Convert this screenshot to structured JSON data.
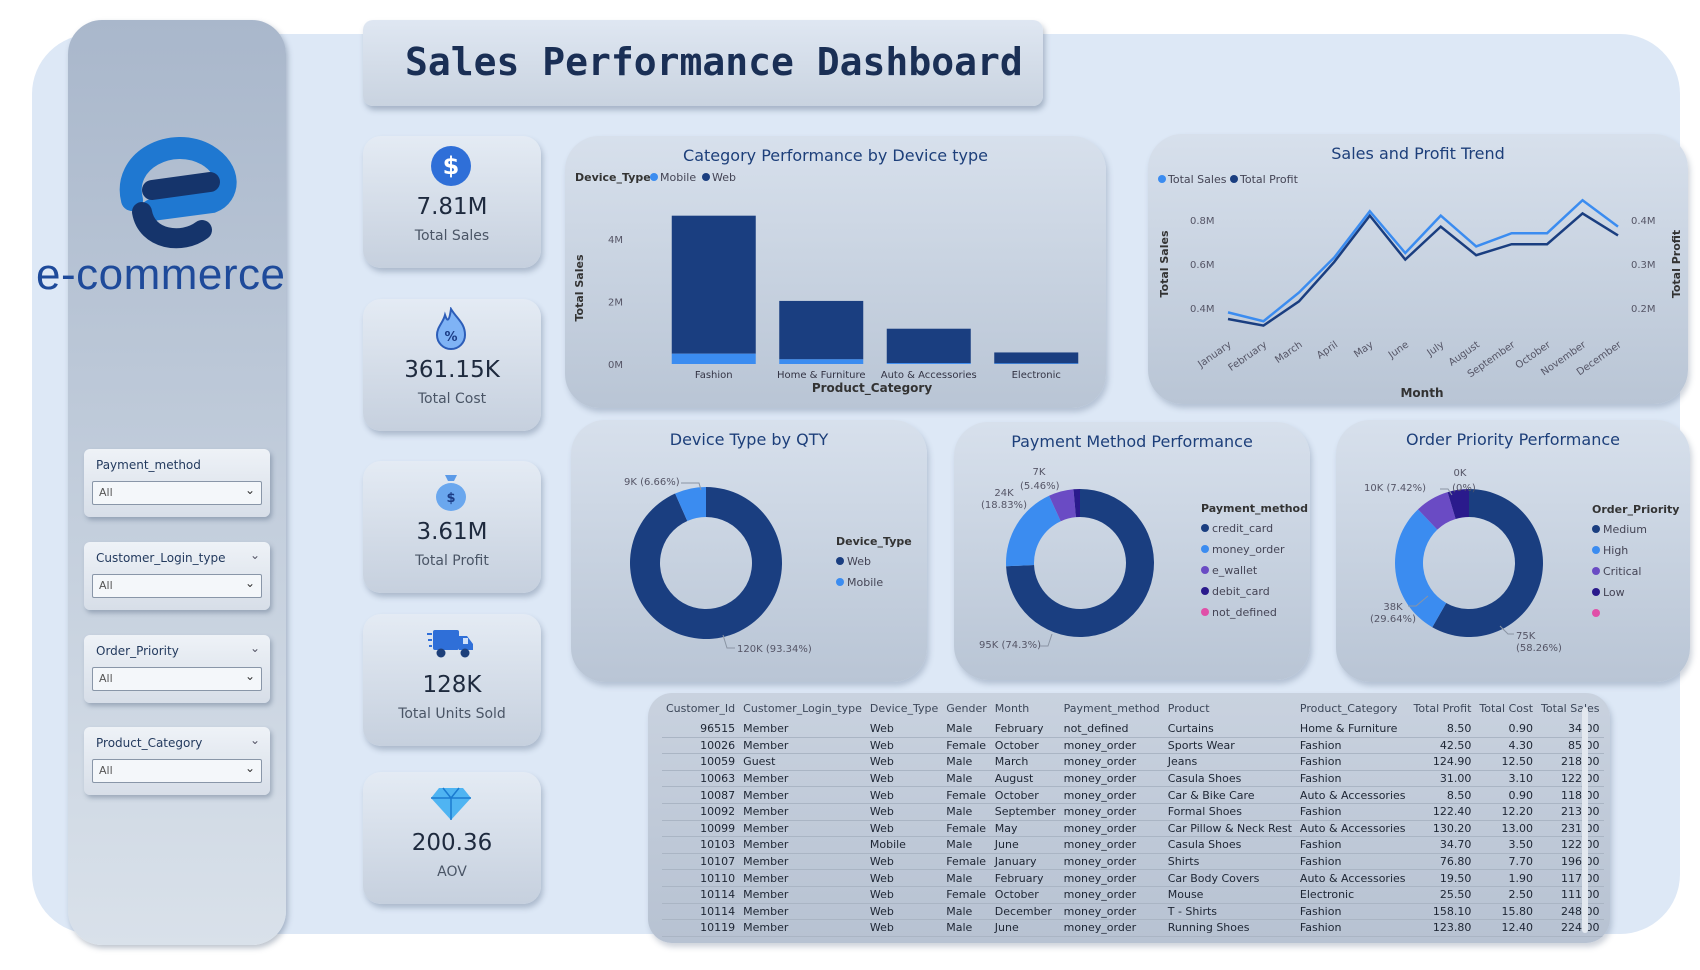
{
  "app": {
    "logo_text": "e-commerce",
    "title": "Sales Performance Dashboard"
  },
  "slicers": [
    {
      "title": "Payment_method",
      "value": "All"
    },
    {
      "title": "Customer_Login_type",
      "value": "All"
    },
    {
      "title": "Order_Priority",
      "value": "All"
    },
    {
      "title": "Product_Category",
      "value": "All"
    }
  ],
  "kpis": [
    {
      "value": "7.81M",
      "label": "Total Sales",
      "icon": "dollar-coin-icon"
    },
    {
      "value": "361.15K",
      "label": "Total Cost",
      "icon": "discount-flame-icon"
    },
    {
      "value": "3.61M",
      "label": "Total Profit",
      "icon": "money-bag-icon"
    },
    {
      "value": "128K",
      "label": "Total Units Sold",
      "icon": "delivery-truck-icon"
    },
    {
      "value": "200.36",
      "label": "AOV",
      "icon": "diamond-icon"
    }
  ],
  "colors": {
    "web": "#1a3e80",
    "mobile": "#3b8cf0",
    "e_wallet": "#6a4bc4",
    "debit_card": "#2a1a8c",
    "not_defined": "#e04fa8"
  },
  "chart_data": [
    {
      "type": "bar",
      "title": "Category Performance by Device type",
      "legend_title": "Device_Type",
      "categories": [
        "Fashion",
        "Home & Furniture",
        "Auto & Accessories",
        "Electronic"
      ],
      "series": [
        {
          "name": "Mobile",
          "values": [
            0.33,
            0.15,
            0.03,
            0.02
          ]
        },
        {
          "name": "Web",
          "values": [
            4.42,
            1.87,
            1.1,
            0.35
          ]
        }
      ],
      "xlabel": "Product_Category",
      "ylabel": "Total Sales",
      "yticks": [
        "0M",
        "2M",
        "4M"
      ],
      "ylim": [
        0,
        4.9
      ]
    },
    {
      "type": "line",
      "title": "Sales and Profit Trend",
      "x": [
        "January",
        "February",
        "March",
        "April",
        "May",
        "June",
        "July",
        "August",
        "September",
        "October",
        "November",
        "December"
      ],
      "series": [
        {
          "name": "Total Sales",
          "values": [
            0.38,
            0.34,
            0.47,
            0.63,
            0.84,
            0.65,
            0.82,
            0.68,
            0.74,
            0.74,
            0.89,
            0.77
          ]
        },
        {
          "name": "Total Profit",
          "values": [
            0.175,
            0.16,
            0.215,
            0.305,
            0.41,
            0.31,
            0.385,
            0.32,
            0.345,
            0.345,
            0.415,
            0.365
          ]
        }
      ],
      "xlabel": "Month",
      "ylabel": "Total Sales",
      "y2label": "Total Profit",
      "yticks": [
        "0.4M",
        "0.6M",
        "0.8M"
      ],
      "y2ticks": [
        "0.2M",
        "0.3M",
        "0.4M"
      ]
    },
    {
      "type": "pie",
      "title": "Device Type by QTY",
      "legend_title": "Device_Type",
      "slices": [
        {
          "name": "Web",
          "value": 93.34,
          "label": "120K (93.34%)"
        },
        {
          "name": "Mobile",
          "value": 6.66,
          "label": "9K (6.66%)"
        }
      ]
    },
    {
      "type": "pie",
      "title": "Payment Method Performance",
      "legend_title": "Payment_method",
      "slices": [
        {
          "name": "credit_card",
          "value": 74.3,
          "label": "95K (74.3%)"
        },
        {
          "name": "money_order",
          "value": 18.83,
          "label": "24K (18.83%)"
        },
        {
          "name": "e_wallet",
          "value": 5.46,
          "label": "7K (5.46%)"
        },
        {
          "name": "debit_card",
          "value": 1.41,
          "label": ""
        },
        {
          "name": "not_defined",
          "value": 0.0,
          "label": ""
        }
      ]
    },
    {
      "type": "pie",
      "title": "Order Priority Performance",
      "legend_title": "Order_Priority",
      "slices": [
        {
          "name": "Medium",
          "value": 58.26,
          "label": "75K (58.26%)"
        },
        {
          "name": "High",
          "value": 29.64,
          "label": "38K (29.64%)"
        },
        {
          "name": "Critical",
          "value": 7.42,
          "label": "10K (7.42%)"
        },
        {
          "name": "Low",
          "value": 4.68,
          "label": ""
        },
        {
          "name": "",
          "value": 0.0,
          "label": "0K (0%)"
        }
      ]
    },
    {
      "type": "table",
      "columns": [
        "Customer_Id",
        "Customer_Login_type",
        "Device_Type",
        "Gender",
        "Month",
        "Payment_method",
        "Product",
        "Product_Category",
        "Total Profit",
        "Total Cost",
        "Total Sales"
      ],
      "rows": [
        [
          "96515",
          "Member",
          "Web",
          "Male",
          "February",
          "not_defined",
          "Curtains",
          "Home & Furniture",
          "8.50",
          "0.90",
          "34.00"
        ],
        [
          "10026",
          "Member",
          "Web",
          "Female",
          "October",
          "money_order",
          "Sports Wear",
          "Fashion",
          "42.50",
          "4.30",
          "85.00"
        ],
        [
          "10059",
          "Guest",
          "Web",
          "Male",
          "March",
          "money_order",
          "Jeans",
          "Fashion",
          "124.90",
          "12.50",
          "218.00"
        ],
        [
          "10063",
          "Member",
          "Web",
          "Male",
          "August",
          "money_order",
          "Casula Shoes",
          "Fashion",
          "31.00",
          "3.10",
          "122.00"
        ],
        [
          "10087",
          "Member",
          "Web",
          "Female",
          "October",
          "money_order",
          "Car & Bike Care",
          "Auto & Accessories",
          "8.50",
          "0.90",
          "118.00"
        ],
        [
          "10092",
          "Member",
          "Web",
          "Male",
          "September",
          "money_order",
          "Formal Shoes",
          "Fashion",
          "122.40",
          "12.20",
          "213.00"
        ],
        [
          "10099",
          "Member",
          "Web",
          "Female",
          "May",
          "money_order",
          "Car Pillow & Neck Rest",
          "Auto & Accessories",
          "130.20",
          "13.00",
          "231.00"
        ],
        [
          "10103",
          "Member",
          "Mobile",
          "Male",
          "June",
          "money_order",
          "Casula Shoes",
          "Fashion",
          "34.70",
          "3.50",
          "122.00"
        ],
        [
          "10107",
          "Member",
          "Web",
          "Female",
          "January",
          "money_order",
          "Shirts",
          "Fashion",
          "76.80",
          "7.70",
          "196.00"
        ],
        [
          "10110",
          "Member",
          "Web",
          "Male",
          "February",
          "money_order",
          "Car Body Covers",
          "Auto & Accessories",
          "19.50",
          "1.90",
          "117.00"
        ],
        [
          "10114",
          "Member",
          "Web",
          "Female",
          "October",
          "money_order",
          "Mouse",
          "Electronic",
          "25.50",
          "2.50",
          "111.00"
        ],
        [
          "10114",
          "Member",
          "Web",
          "Male",
          "December",
          "money_order",
          "T - Shirts",
          "Fashion",
          "158.10",
          "15.80",
          "248.00"
        ],
        [
          "10119",
          "Member",
          "Web",
          "Male",
          "June",
          "money_order",
          "Running Shoes",
          "Fashion",
          "123.80",
          "12.40",
          "224.00"
        ]
      ]
    }
  ]
}
